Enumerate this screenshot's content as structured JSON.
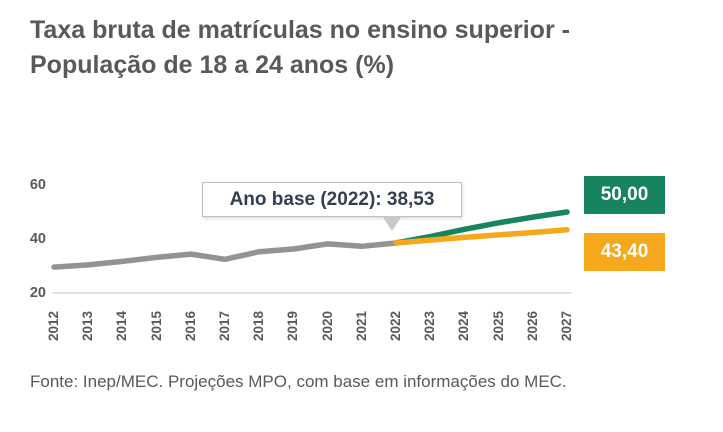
{
  "title": {
    "line1": "Taxa bruta de matrículas no ensino superior -",
    "line2": "População de 18 a 24 anos (%)"
  },
  "annotation": {
    "text": "Ano base (2022): 38,53"
  },
  "value_labels": {
    "green": "50,00",
    "orange": "43,40"
  },
  "footer": {
    "text": "Fonte: Inep/MEC. Projeções MPO, com base em informações do MEC."
  },
  "colors": {
    "green": "#17835F",
    "orange": "#F5A81B",
    "gray_line": "#939393",
    "text_gray": "#595959",
    "annotation_text": "#333F50",
    "annotation_border": "#BFBFBF",
    "pointer_fill": "#C9C9C9",
    "gridline": "#D9D9D9",
    "background": "#FFFFFF"
  },
  "chart_data": {
    "type": "line",
    "title": "Taxa bruta de matrículas no ensino superior - População de 18 a 24 anos (%)",
    "x": [
      2012,
      2013,
      2014,
      2015,
      2016,
      2017,
      2018,
      2019,
      2020,
      2021,
      2022,
      2023,
      2024,
      2025,
      2026,
      2027
    ],
    "yticks": [
      20,
      40,
      60
    ],
    "ylim": [
      20,
      62
    ],
    "grid": "baseline-only",
    "legend_position": "none",
    "series": [
      {
        "id": "historico",
        "color_key": "gray_line",
        "values": [
          29.6,
          30.4,
          31.7,
          33.2,
          34.4,
          32.5,
          35.3,
          36.3,
          38.2,
          37.3,
          38.53,
          null,
          null,
          null,
          null,
          null
        ]
      },
      {
        "id": "projecao-superior",
        "color_key": "green",
        "end_label": "50,00",
        "values": [
          null,
          null,
          null,
          null,
          null,
          null,
          null,
          null,
          null,
          null,
          38.53,
          40.9,
          43.6,
          46.0,
          48.1,
          50.0
        ]
      },
      {
        "id": "projecao-inferior",
        "color_key": "orange",
        "end_label": "43,40",
        "values": [
          null,
          null,
          null,
          null,
          null,
          null,
          null,
          null,
          null,
          null,
          38.53,
          39.6,
          40.6,
          41.5,
          42.4,
          43.4
        ]
      }
    ],
    "annotation": {
      "text": "Ano base (2022): 38,53",
      "target_x": 2022,
      "target_value": 38.53
    }
  }
}
